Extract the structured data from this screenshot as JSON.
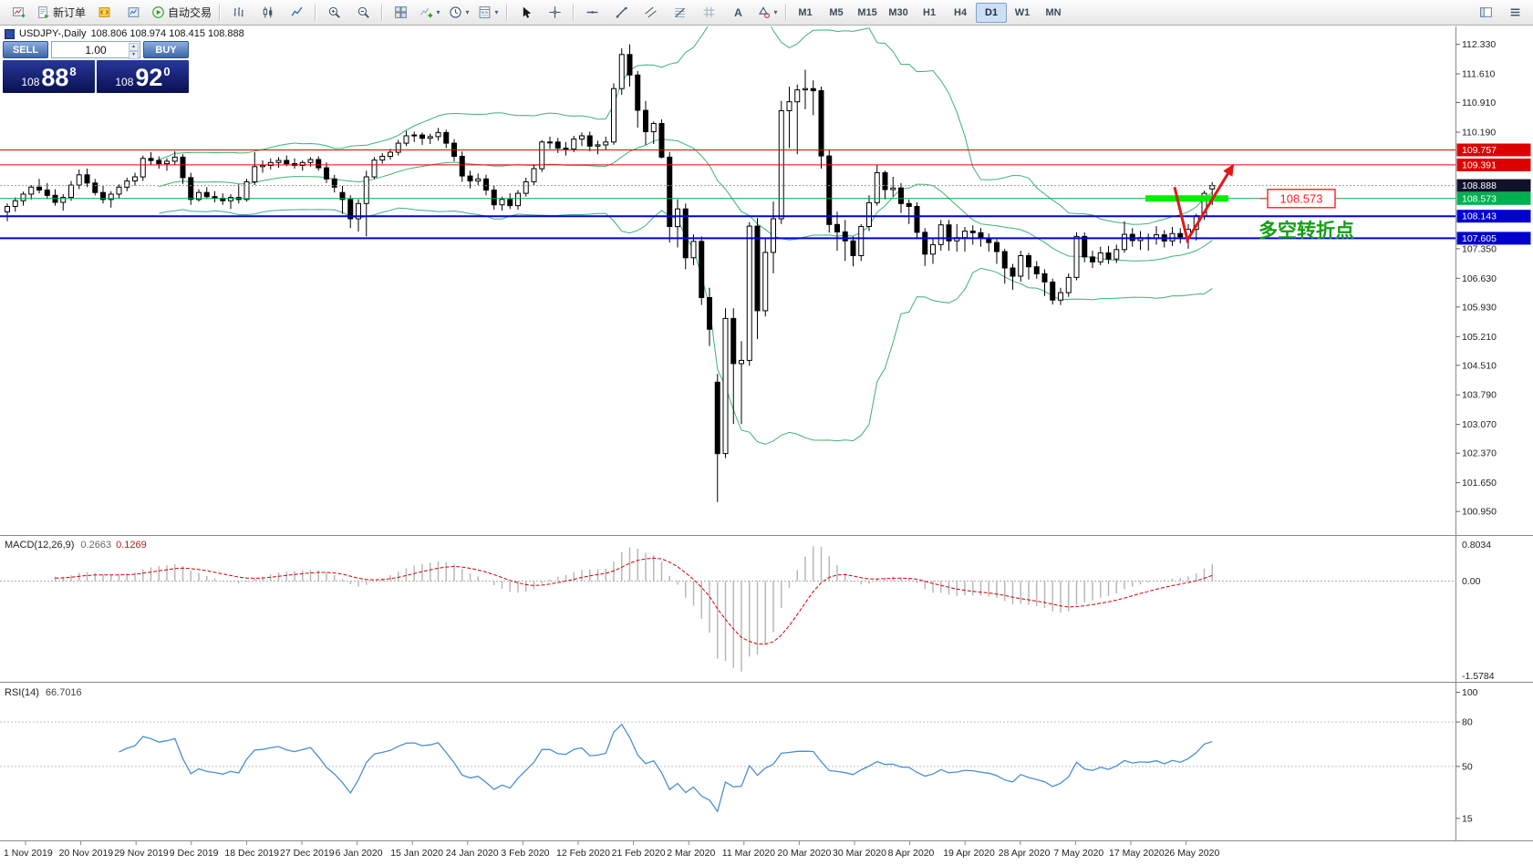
{
  "symbol_header": {
    "title": "USDJPY-,Daily",
    "ohlc": "108.806 108.974 108.415 108.888"
  },
  "trade_panel": {
    "sell_label": "SELL",
    "buy_label": "BUY",
    "volume": "1.00",
    "bid": {
      "prefix": "108",
      "big": "88",
      "sup": "8"
    },
    "ask": {
      "prefix": "108",
      "big": "92",
      "sup": "0"
    }
  },
  "toolbar": {
    "groups": [
      {
        "items": [
          {
            "name": "new-chart",
            "icon": "new-chart"
          },
          {
            "name": "new-order",
            "icon": "new-order",
            "label": "新订单"
          },
          {
            "name": "metaeditor",
            "icon": "metaeditor"
          },
          {
            "name": "market-watch",
            "icon": "market-watch"
          },
          {
            "name": "autotrading",
            "icon": "autotrading",
            "label": "自动交易"
          }
        ]
      },
      {
        "items": [
          {
            "name": "bar-chart-mode",
            "icon": "bars"
          },
          {
            "name": "candle-chart-mode",
            "icon": "candles"
          },
          {
            "name": "line-chart-mode",
            "icon": "line"
          }
        ]
      },
      {
        "items": [
          {
            "name": "zoom-in",
            "icon": "zoom-in"
          },
          {
            "name": "zoom-out",
            "icon": "zoom-out"
          }
        ]
      },
      {
        "items": [
          {
            "name": "tile-windows",
            "icon": "tile"
          },
          {
            "name": "indicators",
            "icon": "indicators",
            "caret": true
          },
          {
            "name": "periods",
            "icon": "clock",
            "caret": true
          },
          {
            "name": "templates",
            "icon": "template",
            "caret": true
          }
        ]
      },
      {
        "items": [
          {
            "name": "cursor-tool",
            "icon": "cursor"
          },
          {
            "name": "crosshair-tool",
            "icon": "crosshair"
          }
        ]
      },
      {
        "items": [
          {
            "name": "horizontal-line-tool",
            "icon": "hline"
          },
          {
            "name": "trendline-tool",
            "icon": "trendline"
          },
          {
            "name": "channel-tool",
            "icon": "channel"
          },
          {
            "name": "fibonacci-tool",
            "icon": "fibonacci"
          },
          {
            "name": "grid-tool",
            "icon": "grid"
          },
          {
            "name": "text-tool",
            "icon": "text"
          },
          {
            "name": "shapes-tool",
            "icon": "shapes",
            "caret": true
          }
        ]
      }
    ],
    "timeframes": {
      "items": [
        "M1",
        "M5",
        "M15",
        "M30",
        "H1",
        "H4",
        "D1",
        "W1",
        "MN"
      ],
      "active": "D1"
    },
    "right_items": [
      {
        "name": "chart-profile",
        "icon": "panel"
      },
      {
        "name": "toolbar-menu",
        "icon": "menu"
      }
    ]
  },
  "chart_data": {
    "type": "candlestick",
    "symbol": "USDJPY-",
    "timeframe": "Daily",
    "ohlc": {
      "open": 108.806,
      "high": 108.974,
      "low": 108.415,
      "close": 108.888
    },
    "y_axis_ticks": [
      112.33,
      111.61,
      110.91,
      110.19,
      107.35,
      106.63,
      105.93,
      105.21,
      104.51,
      103.79,
      103.07,
      102.37,
      101.65,
      100.95
    ],
    "levels": [
      {
        "price": 109.757,
        "line_color": "#e60000",
        "tag_bg": "#dd0000",
        "style": "solid",
        "width": 1
      },
      {
        "price": 109.391,
        "line_color": "#e60000",
        "tag_bg": "#dd0000",
        "style": "solid",
        "width": 1
      },
      {
        "price": 108.888,
        "line_color": "#999999",
        "tag_bg": "#11112b",
        "style": "dot",
        "width": 1
      },
      {
        "price": 108.573,
        "line_color": "#00a84a",
        "tag_bg": "#00b050",
        "style": "solid",
        "width": 1
      },
      {
        "price": 108.143,
        "line_color": "#0000e6",
        "tag_bg": "#0000cd",
        "style": "solid",
        "width": 2
      },
      {
        "price": 107.605,
        "line_color": "#0000e6",
        "tag_bg": "#0000cd",
        "style": "solid",
        "width": 2
      }
    ],
    "x_labels": [
      "1 Nov 2019",
      "20 Nov 2019",
      "29 Nov 2019",
      "9 Dec 2019",
      "18 Dec 2019",
      "27 Dec 2019",
      "6 Jan 2020",
      "15 Jan 2020",
      "24 Jan 2020",
      "3 Feb 2020",
      "12 Feb 2020",
      "21 Feb 2020",
      "2 Mar 2020",
      "11 Mar 2020",
      "20 Mar 2020",
      "30 Mar 2020",
      "8 Apr 2020",
      "19 Apr 2020",
      "28 Apr 2020",
      "7 May 2020",
      "17 May 2020",
      "26 May 2020"
    ],
    "overlays": {
      "bollinger": {
        "period": 20,
        "deviation": 2,
        "color": "#3CB371"
      }
    },
    "indicators": {
      "macd": {
        "label": "MACD(12,26,9)",
        "value_main": "0.2663",
        "value_signal": "0.1269",
        "axis": [
          "0.8034",
          "0.00",
          "-1.5784"
        ],
        "histogram_color": "#b4b4b4",
        "signal_color": "#d40000"
      },
      "rsi": {
        "label": "RSI(14)",
        "value": "66.7016",
        "axis": [
          100,
          80,
          50,
          15
        ],
        "levels": [
          80,
          50
        ],
        "line_color": "#4a8fd2"
      }
    },
    "annotations": {
      "support_bar": {
        "price": 108.573,
        "color": "#00ee00"
      },
      "price_callout": {
        "text": "108.573",
        "color": "#ff1e1e"
      },
      "note": {
        "text": "多空转折点",
        "color": "#14a014"
      },
      "arrow": {
        "color": "#e11818"
      }
    },
    "candles": [
      [
        108.25,
        108.45,
        108.02,
        108.38
      ],
      [
        108.38,
        108.6,
        108.25,
        108.52
      ],
      [
        108.52,
        108.74,
        108.4,
        108.68
      ],
      [
        108.68,
        108.9,
        108.55,
        108.85
      ],
      [
        108.85,
        109.05,
        108.7,
        108.78
      ],
      [
        108.78,
        108.95,
        108.56,
        108.65
      ],
      [
        108.65,
        108.8,
        108.4,
        108.48
      ],
      [
        108.48,
        108.68,
        108.28,
        108.6
      ],
      [
        108.6,
        109.0,
        108.52,
        108.9
      ],
      [
        108.9,
        109.28,
        108.8,
        109.15
      ],
      [
        109.15,
        109.3,
        108.85,
        108.95
      ],
      [
        108.95,
        109.05,
        108.65,
        108.72
      ],
      [
        108.72,
        108.88,
        108.45,
        108.55
      ],
      [
        108.55,
        108.75,
        108.35,
        108.68
      ],
      [
        108.68,
        108.92,
        108.58,
        108.85
      ],
      [
        108.85,
        109.08,
        108.75,
        109.0
      ],
      [
        109.0,
        109.2,
        108.88,
        109.1
      ],
      [
        109.1,
        109.62,
        109.0,
        109.55
      ],
      [
        109.55,
        109.7,
        109.4,
        109.5
      ],
      [
        109.5,
        109.6,
        109.3,
        109.42
      ],
      [
        109.42,
        109.55,
        109.25,
        109.48
      ],
      [
        109.48,
        109.73,
        109.38,
        109.58
      ],
      [
        109.58,
        109.65,
        108.93,
        109.08
      ],
      [
        109.08,
        109.2,
        108.42,
        108.55
      ],
      [
        108.55,
        108.8,
        108.5,
        108.72
      ],
      [
        108.72,
        108.85,
        108.56,
        108.62
      ],
      [
        108.62,
        108.75,
        108.48,
        108.58
      ],
      [
        108.58,
        108.7,
        108.42,
        108.52
      ],
      [
        108.52,
        108.68,
        108.32,
        108.6
      ],
      [
        108.6,
        108.92,
        108.45,
        108.55
      ],
      [
        108.55,
        109.05,
        108.5,
        108.98
      ],
      [
        108.98,
        109.7,
        108.9,
        109.35
      ],
      [
        109.35,
        109.5,
        109.2,
        109.38
      ],
      [
        109.38,
        109.55,
        109.28,
        109.45
      ],
      [
        109.45,
        109.58,
        109.32,
        109.5
      ],
      [
        109.5,
        109.62,
        109.36,
        109.42
      ],
      [
        109.42,
        109.55,
        109.3,
        109.38
      ],
      [
        109.38,
        109.5,
        109.25,
        109.45
      ],
      [
        109.45,
        109.58,
        109.35,
        109.52
      ],
      [
        109.52,
        109.6,
        109.25,
        109.32
      ],
      [
        109.32,
        109.45,
        108.95,
        109.05
      ],
      [
        109.05,
        109.15,
        108.72,
        108.85
      ],
      [
        108.72,
        108.88,
        108.2,
        108.55
      ],
      [
        108.55,
        108.65,
        107.85,
        108.08
      ],
      [
        108.08,
        108.55,
        107.77,
        108.45
      ],
      [
        108.45,
        109.25,
        107.65,
        109.1
      ],
      [
        109.1,
        109.58,
        109.05,
        109.51
      ],
      [
        109.51,
        109.68,
        109.42,
        109.6
      ],
      [
        109.6,
        109.78,
        109.52,
        109.7
      ],
      [
        109.7,
        110.0,
        109.62,
        109.92
      ],
      [
        109.92,
        110.22,
        109.85,
        110.1
      ],
      [
        110.1,
        110.2,
        109.95,
        110.12
      ],
      [
        110.12,
        110.18,
        109.88,
        110.04
      ],
      [
        110.04,
        110.15,
        109.9,
        110.08
      ],
      [
        110.08,
        110.29,
        109.98,
        110.18
      ],
      [
        110.18,
        110.25,
        109.8,
        109.92
      ],
      [
        109.92,
        110.02,
        109.48,
        109.6
      ],
      [
        109.6,
        109.72,
        108.98,
        109.12
      ],
      [
        109.12,
        109.25,
        108.82,
        109.0
      ],
      [
        109.0,
        109.18,
        108.9,
        109.05
      ],
      [
        109.05,
        109.15,
        108.65,
        108.78
      ],
      [
        108.78,
        108.9,
        108.3,
        108.42
      ],
      [
        108.42,
        108.62,
        108.28,
        108.55
      ],
      [
        108.55,
        108.7,
        108.32,
        108.4
      ],
      [
        108.4,
        108.78,
        108.3,
        108.7
      ],
      [
        108.7,
        109.08,
        108.62,
        108.98
      ],
      [
        108.98,
        109.38,
        108.9,
        109.3
      ],
      [
        109.3,
        110.0,
        109.22,
        109.95
      ],
      [
        109.95,
        110.08,
        109.78,
        109.95
      ],
      [
        109.95,
        110.05,
        109.68,
        109.8
      ],
      [
        109.8,
        109.95,
        109.62,
        109.78
      ],
      [
        109.78,
        110.1,
        109.7,
        110.02
      ],
      [
        110.02,
        110.18,
        109.85,
        110.1
      ],
      [
        110.1,
        110.2,
        109.72,
        109.85
      ],
      [
        109.85,
        109.98,
        109.65,
        109.88
      ],
      [
        109.88,
        110.08,
        109.75,
        109.95
      ],
      [
        109.95,
        111.38,
        109.88,
        111.25
      ],
      [
        111.25,
        112.23,
        111.1,
        112.08
      ],
      [
        112.08,
        112.33,
        111.3,
        111.58
      ],
      [
        111.58,
        111.68,
        110.3,
        110.72
      ],
      [
        110.72,
        110.95,
        109.88,
        110.2
      ],
      [
        110.2,
        110.45,
        109.9,
        110.4
      ],
      [
        110.4,
        110.5,
        109.55,
        109.58
      ],
      [
        109.58,
        109.7,
        107.5,
        107.89
      ],
      [
        107.89,
        108.55,
        107.38,
        108.32
      ],
      [
        108.32,
        108.45,
        106.85,
        107.13
      ],
      [
        107.13,
        107.7,
        106.95,
        107.53
      ],
      [
        107.53,
        107.65,
        105.98,
        106.16
      ],
      [
        106.16,
        106.4,
        104.98,
        105.39
      ],
      [
        104.1,
        104.3,
        101.18,
        102.36
      ],
      [
        102.36,
        105.9,
        102.25,
        105.65
      ],
      [
        105.65,
        105.9,
        103.08,
        104.55
      ],
      [
        104.55,
        105.1,
        103.08,
        104.63
      ],
      [
        104.63,
        108.0,
        104.5,
        107.9
      ],
      [
        107.9,
        108.1,
        105.15,
        105.84
      ],
      [
        105.84,
        107.6,
        105.7,
        107.26
      ],
      [
        107.26,
        108.5,
        106.75,
        108.08
      ],
      [
        108.08,
        110.95,
        107.95,
        110.71
      ],
      [
        110.71,
        111.3,
        109.8,
        110.93
      ],
      [
        110.93,
        111.35,
        109.65,
        111.22
      ],
      [
        111.22,
        111.71,
        110.75,
        111.25
      ],
      [
        111.25,
        111.45,
        110.6,
        111.2
      ],
      [
        111.2,
        111.3,
        109.3,
        109.61
      ],
      [
        109.61,
        109.75,
        107.74,
        107.94
      ],
      [
        107.94,
        108.25,
        107.3,
        107.76
      ],
      [
        107.76,
        108.05,
        107.05,
        107.54
      ],
      [
        107.54,
        107.65,
        106.92,
        107.18
      ],
      [
        107.18,
        107.95,
        107.05,
        107.89
      ],
      [
        107.89,
        108.65,
        107.78,
        108.47
      ],
      [
        108.47,
        109.38,
        108.4,
        109.2
      ],
      [
        109.2,
        109.25,
        108.55,
        108.79
      ],
      [
        108.79,
        109.1,
        108.62,
        108.83
      ],
      [
        108.83,
        108.95,
        108.22,
        108.45
      ],
      [
        108.45,
        108.55,
        107.95,
        108.38
      ],
      [
        108.38,
        108.48,
        107.58,
        107.75
      ],
      [
        107.75,
        107.85,
        106.93,
        107.22
      ],
      [
        107.22,
        107.6,
        106.98,
        107.45
      ],
      [
        107.45,
        108.05,
        107.3,
        107.93
      ],
      [
        107.93,
        108.05,
        107.3,
        107.54
      ],
      [
        107.54,
        107.95,
        107.28,
        107.62
      ],
      [
        107.62,
        107.88,
        107.28,
        107.78
      ],
      [
        107.78,
        107.92,
        107.45,
        107.74
      ],
      [
        107.74,
        107.85,
        107.4,
        107.6
      ],
      [
        107.6,
        107.72,
        107.28,
        107.5
      ],
      [
        107.5,
        107.58,
        106.98,
        107.28
      ],
      [
        107.28,
        107.35,
        106.5,
        106.88
      ],
      [
        106.88,
        106.98,
        106.35,
        106.68
      ],
      [
        106.68,
        107.3,
        106.55,
        107.18
      ],
      [
        107.18,
        107.25,
        106.6,
        106.91
      ],
      [
        106.91,
        107.05,
        106.62,
        106.74
      ],
      [
        106.74,
        106.85,
        106.2,
        106.54
      ],
      [
        106.54,
        106.62,
        105.99,
        106.1
      ],
      [
        106.1,
        106.4,
        105.98,
        106.28
      ],
      [
        106.28,
        106.75,
        106.18,
        106.65
      ],
      [
        106.65,
        107.75,
        106.58,
        107.65
      ],
      [
        107.65,
        107.75,
        107.02,
        107.15
      ],
      [
        107.15,
        107.3,
        106.88,
        107.03
      ],
      [
        107.03,
        107.4,
        106.95,
        107.25
      ],
      [
        107.25,
        107.42,
        106.98,
        107.1
      ],
      [
        107.1,
        107.45,
        107.0,
        107.33
      ],
      [
        107.33,
        108.02,
        107.25,
        107.7
      ],
      [
        107.7,
        107.85,
        107.4,
        107.55
      ],
      [
        107.55,
        107.78,
        107.32,
        107.62
      ],
      [
        107.62,
        107.72,
        107.3,
        107.6
      ],
      [
        107.6,
        107.9,
        107.45,
        107.69
      ],
      [
        107.69,
        107.8,
        107.38,
        107.54
      ],
      [
        107.54,
        107.88,
        107.42,
        107.72
      ],
      [
        107.72,
        107.85,
        107.48,
        107.64
      ],
      [
        107.64,
        107.95,
        107.35,
        107.82
      ],
      [
        107.82,
        108.2,
        107.55,
        108.15
      ],
      [
        108.15,
        108.76,
        108.05,
        108.7
      ],
      [
        108.806,
        108.974,
        108.415,
        108.888
      ]
    ]
  }
}
